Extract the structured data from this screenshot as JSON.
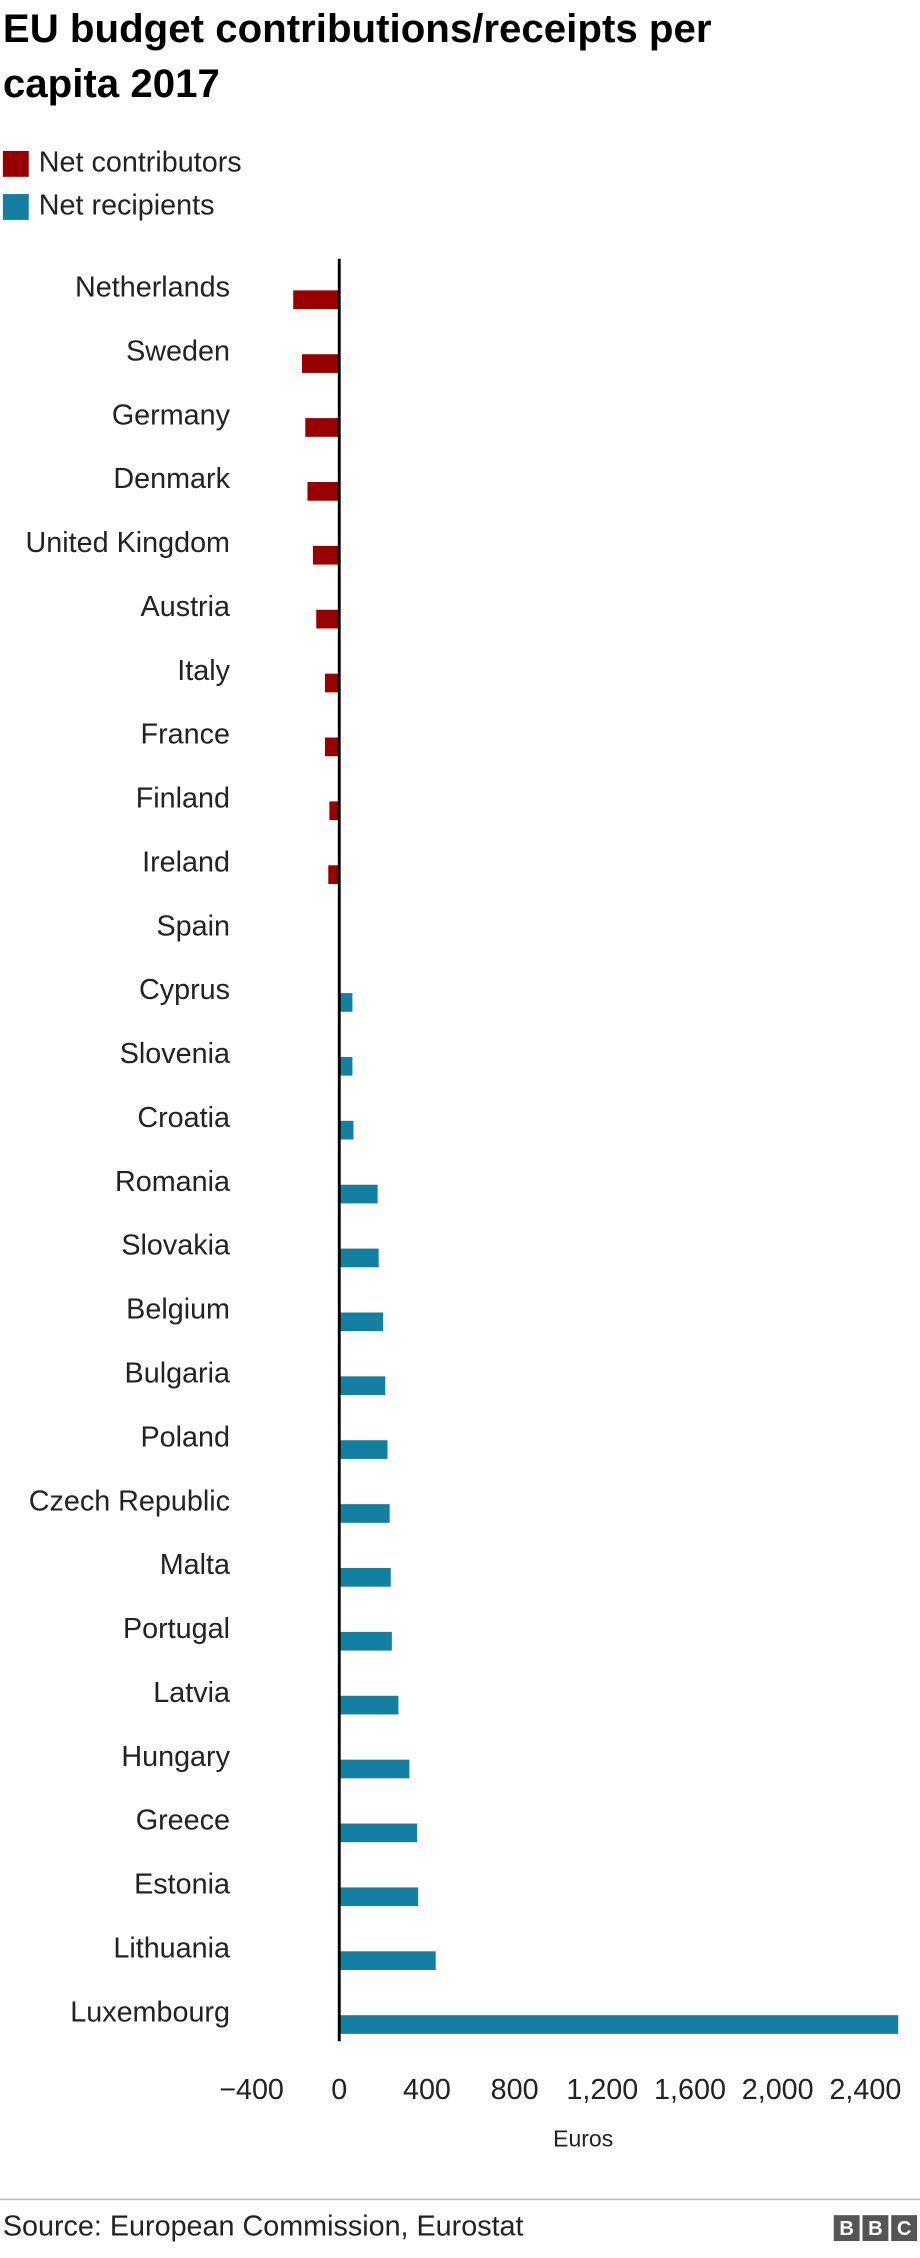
{
  "chart_data": {
    "type": "bar",
    "orientation": "horizontal",
    "title": [
      "EU budget contributions/receipts per",
      "capita 2017"
    ],
    "x_label": "Euros",
    "source": "Source: European Commission, Eurostat",
    "logo": [
      "B",
      "B",
      "C"
    ],
    "categories": [
      "Netherlands",
      "Sweden",
      "Germany",
      "Denmark",
      "United Kingdom",
      "Austria",
      "Italy",
      "France",
      "Finland",
      "Ireland",
      "Spain",
      "Cyprus",
      "Slovenia",
      "Croatia",
      "Romania",
      "Slovakia",
      "Belgium",
      "Bulgaria",
      "Poland",
      "Czech Republic",
      "Malta",
      "Portugal",
      "Latvia",
      "Hungary",
      "Greece",
      "Estonia",
      "Lithuania",
      "Luxembourg"
    ],
    "series": [
      {
        "name": "Net contributors",
        "color": "#990000",
        "values": [
          -210,
          -170,
          -155,
          -145,
          -120,
          -105,
          -65,
          -65,
          -45,
          -50,
          null,
          null,
          null,
          null,
          null,
          null,
          null,
          null,
          null,
          null,
          null,
          null,
          null,
          null,
          null,
          null,
          null,
          null
        ]
      },
      {
        "name": "Net recipients",
        "color": "#1380a1",
        "values": [
          null,
          null,
          null,
          null,
          null,
          null,
          null,
          null,
          null,
          null,
          0,
          60,
          60,
          65,
          175,
          180,
          200,
          210,
          220,
          230,
          235,
          240,
          270,
          320,
          355,
          360,
          440,
          2550
        ]
      }
    ],
    "xlim": [
      -400,
      2560
    ],
    "xticks": [
      {
        "value": -400,
        "label": "−400"
      },
      0,
      400,
      800,
      {
        "value": 1200,
        "label": "1,200"
      },
      {
        "value": 1600,
        "label": "1,600"
      },
      {
        "value": 2000,
        "label": "2,000"
      },
      {
        "value": 2400,
        "label": "2,400"
      }
    ],
    "legend": "top-left",
    "grid": false
  }
}
